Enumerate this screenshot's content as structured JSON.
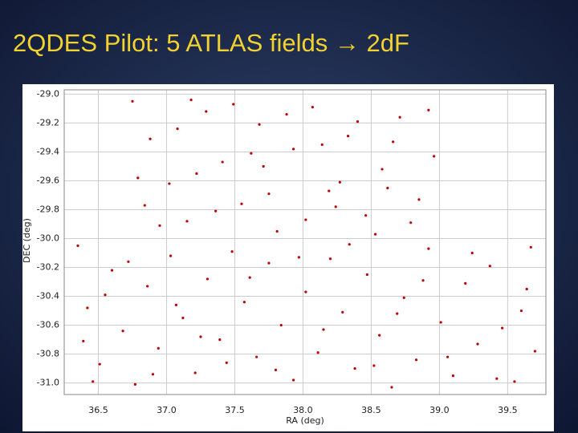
{
  "chart_data": {
    "type": "scatter",
    "title": "2QDES Pilot: 5 ATLAS fields → 2dF",
    "x_label": "RA (deg)",
    "y_label": "DEC (deg)",
    "xlim": [
      36.25,
      39.78
    ],
    "ylim": [
      -31.08,
      -28.97
    ],
    "xticks": [
      36.5,
      {
        "value": 37.0,
        "label": "37.0"
      },
      37.5,
      {
        "value": 38.0,
        "label": "38.0"
      },
      38.5,
      {
        "value": 39.0,
        "label": "39.0"
      },
      39.5
    ],
    "yticks": [
      {
        "value": -29.0,
        "label": "-29.0"
      },
      -29.2,
      -29.4,
      -29.6,
      -29.8,
      {
        "value": -30.0,
        "label": "-30.0"
      },
      -30.2,
      -30.4,
      -30.6,
      -30.8,
      {
        "value": -31.0,
        "label": "-31.0"
      }
    ],
    "grid": true,
    "color": "#c00000",
    "x": [
      36.75,
      36.88,
      37.02,
      37.15,
      37.29,
      37.41,
      37.55,
      37.68,
      37.81,
      37.93,
      38.07,
      38.19,
      38.33,
      38.46,
      38.58,
      38.71,
      38.85,
      38.96,
      36.79,
      36.95,
      37.08,
      37.22,
      37.36,
      37.49,
      37.62,
      37.75,
      37.88,
      38.02,
      38.14,
      38.27,
      38.4,
      38.53,
      38.66,
      38.79,
      38.92,
      36.84,
      37.18,
      37.71,
      38.24,
      38.62,
      36.35,
      36.42,
      36.51,
      36.6,
      36.68,
      36.77,
      36.86,
      36.94,
      37.03,
      37.12,
      37.21,
      37.3,
      37.39,
      37.48,
      37.57,
      37.66,
      37.75,
      37.84,
      37.93,
      38.02,
      38.11,
      38.2,
      38.29,
      38.38,
      38.47,
      38.56,
      38.65,
      38.74,
      38.83,
      38.92,
      39.01,
      39.1,
      39.19,
      39.28,
      39.37,
      39.46,
      39.55,
      39.64,
      39.7,
      36.39,
      36.55,
      36.72,
      36.9,
      37.07,
      37.25,
      37.44,
      37.61,
      37.8,
      37.97,
      38.15,
      38.34,
      38.52,
      38.69,
      38.88,
      39.06,
      39.24,
      39.42,
      39.6,
      36.46,
      39.67
    ],
    "y": [
      -29.05,
      -29.31,
      -29.62,
      -29.88,
      -29.12,
      -29.47,
      -29.76,
      -29.21,
      -29.95,
      -29.38,
      -29.09,
      -29.67,
      -29.29,
      -29.84,
      -29.52,
      -29.16,
      -29.73,
      -29.43,
      -29.58,
      -29.91,
      -29.24,
      -29.55,
      -29.81,
      -29.07,
      -29.41,
      -29.69,
      -29.14,
      -29.87,
      -29.35,
      -29.61,
      -29.19,
      -29.97,
      -29.33,
      -29.89,
      -29.11,
      -29.77,
      -29.04,
      -29.5,
      -29.78,
      -29.65,
      -30.05,
      -30.48,
      -30.87,
      -30.22,
      -30.64,
      -31.01,
      -30.33,
      -30.76,
      -30.12,
      -30.55,
      -30.93,
      -30.28,
      -30.7,
      -30.09,
      -30.44,
      -30.82,
      -30.17,
      -30.6,
      -30.98,
      -30.37,
      -30.79,
      -30.14,
      -30.51,
      -30.9,
      -30.25,
      -30.67,
      -31.03,
      -30.41,
      -30.84,
      -30.07,
      -30.58,
      -30.95,
      -30.31,
      -30.73,
      -30.19,
      -30.62,
      -30.99,
      -30.35,
      -30.78,
      -30.71,
      -30.39,
      -30.16,
      -30.94,
      -30.46,
      -30.68,
      -30.86,
      -30.27,
      -30.91,
      -30.13,
      -30.63,
      -30.04,
      -30.88,
      -30.52,
      -30.29,
      -30.82,
      -30.1,
      -30.97,
      -30.5,
      -30.99,
      -30.06
    ]
  }
}
